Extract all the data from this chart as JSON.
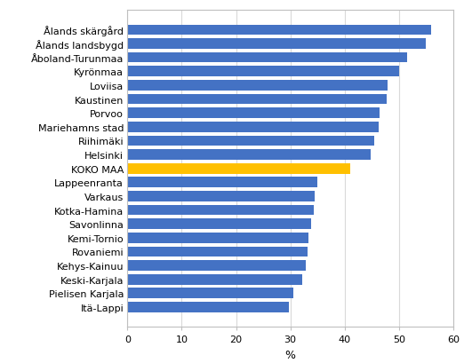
{
  "categories": [
    "Ålands skärgård",
    "Ålands landsbygd",
    "Åboland-Turunmaa",
    "Kyrönmaa",
    "Loviisa",
    "Kaustinen",
    "Porvoo",
    "Mariehamns stad",
    "Riihimäki",
    "Helsinki",
    "KOKO MAA",
    "Lappeenranta",
    "Varkaus",
    "Kotka-Hamina",
    "Savonlinna",
    "Kemi-Tornio",
    "Rovaniemi",
    "Kehys-Kainuu",
    "Keski-Karjala",
    "Pielisen Karjala",
    "Itä-Lappi"
  ],
  "values": [
    56.0,
    55.0,
    51.5,
    50.0,
    48.0,
    47.8,
    46.5,
    46.3,
    45.5,
    44.8,
    41.0,
    35.0,
    34.5,
    34.3,
    33.8,
    33.3,
    33.2,
    32.8,
    32.2,
    30.5,
    29.8
  ],
  "colors": [
    "#4472C4",
    "#4472C4",
    "#4472C4",
    "#4472C4",
    "#4472C4",
    "#4472C4",
    "#4472C4",
    "#4472C4",
    "#4472C4",
    "#4472C4",
    "#FFC000",
    "#4472C4",
    "#4472C4",
    "#4472C4",
    "#4472C4",
    "#4472C4",
    "#4472C4",
    "#4472C4",
    "#4472C4",
    "#4472C4",
    "#4472C4"
  ],
  "xlabel": "%",
  "xlim": [
    0,
    60
  ],
  "xticks": [
    0,
    10,
    20,
    30,
    40,
    50,
    60
  ],
  "background_color": "#FFFFFF",
  "grid_color": "#D9D9D9",
  "bar_height": 0.75,
  "tick_fontsize": 8,
  "xlabel_fontsize": 9
}
